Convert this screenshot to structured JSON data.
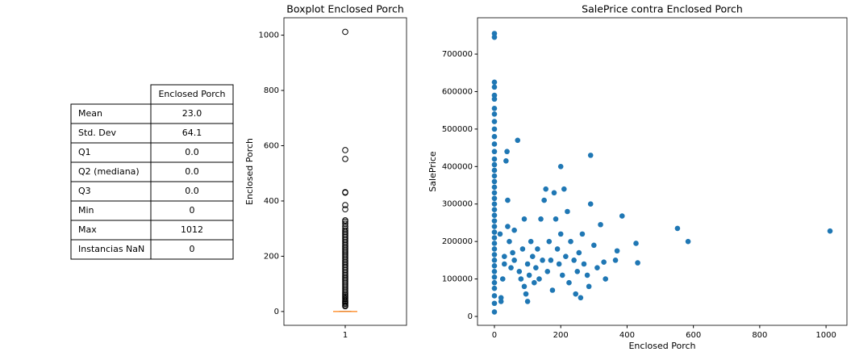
{
  "table": {
    "columns": [
      "Enclosed Porch"
    ],
    "rows": [
      [
        "Mean",
        "23.0"
      ],
      [
        "Std. Dev",
        "64.1"
      ],
      [
        "Q1",
        "0.0"
      ],
      [
        "Q2 (mediana)",
        "0.0"
      ],
      [
        "Q3",
        "0.0"
      ],
      [
        "Min",
        "0"
      ],
      [
        "Max",
        "1012"
      ],
      [
        "Instancias NaN",
        "0"
      ]
    ]
  },
  "chart_data": [
    {
      "type": "box",
      "title": "Boxplot Enclosed Porch",
      "y_label": "Enclosed Porch",
      "categories": [
        "1"
      ],
      "q1": 0,
      "median": 0,
      "q3": 0,
      "whisker_low": 0,
      "whisker_high": 0,
      "fliers": [
        19,
        23,
        28,
        32,
        36,
        40,
        45,
        50,
        55,
        60,
        66,
        72,
        78,
        84,
        90,
        96,
        102,
        108,
        114,
        120,
        126,
        132,
        138,
        144,
        150,
        156,
        162,
        168,
        174,
        180,
        186,
        192,
        198,
        204,
        210,
        216,
        222,
        228,
        234,
        240,
        246,
        252,
        258,
        264,
        270,
        276,
        282,
        288,
        294,
        300,
        308,
        318,
        325,
        330,
        370,
        385,
        430,
        432,
        552,
        584,
        1012
      ],
      "box_color": "#000000",
      "median_color": "#ff7f0e",
      "ylim": [
        -50,
        1063
      ],
      "yticks": [
        0,
        200,
        400,
        600,
        800,
        1000
      ]
    },
    {
      "type": "scatter",
      "title": "SalePrice contra Enclosed Porch",
      "x_label": "Enclosed Porch",
      "y_label": "SalePrice",
      "color": "#1f77b4",
      "x": [
        0,
        0,
        0,
        0,
        0,
        0,
        0,
        0,
        0,
        0,
        0,
        0,
        0,
        0,
        0,
        0,
        0,
        0,
        0,
        0,
        0,
        0,
        0,
        0,
        0,
        0,
        0,
        0,
        0,
        0,
        0,
        0,
        0,
        0,
        0,
        0,
        0,
        0,
        0,
        0,
        17,
        20,
        20,
        25,
        30,
        30,
        35,
        38,
        40,
        40,
        45,
        50,
        55,
        60,
        60,
        70,
        75,
        80,
        85,
        90,
        90,
        95,
        100,
        100,
        105,
        110,
        115,
        120,
        125,
        130,
        135,
        140,
        145,
        150,
        155,
        160,
        165,
        170,
        175,
        180,
        185,
        190,
        195,
        200,
        200,
        205,
        210,
        215,
        220,
        225,
        230,
        240,
        245,
        250,
        255,
        260,
        265,
        270,
        280,
        285,
        290,
        290,
        300,
        310,
        320,
        330,
        335,
        365,
        370,
        385,
        427,
        432,
        552,
        584,
        1012
      ],
      "y": [
        12000,
        35000,
        55000,
        75000,
        90000,
        105000,
        120000,
        135000,
        150000,
        165000,
        180000,
        195000,
        210000,
        225000,
        240000,
        255000,
        270000,
        285000,
        300000,
        315000,
        330000,
        345000,
        360000,
        375000,
        390000,
        405000,
        420000,
        440000,
        460000,
        480000,
        500000,
        520000,
        540000,
        555000,
        580000,
        590000,
        612000,
        625000,
        745000,
        755000,
        220000,
        50000,
        40000,
        100000,
        140000,
        160000,
        415000,
        440000,
        310000,
        240000,
        200000,
        130000,
        170000,
        150000,
        230000,
        470000,
        120000,
        100000,
        180000,
        260000,
        80000,
        60000,
        140000,
        40000,
        110000,
        200000,
        160000,
        90000,
        130000,
        180000,
        100000,
        260000,
        150000,
        310000,
        340000,
        120000,
        200000,
        150000,
        70000,
        330000,
        260000,
        180000,
        140000,
        400000,
        220000,
        110000,
        340000,
        160000,
        280000,
        90000,
        200000,
        150000,
        60000,
        120000,
        170000,
        50000,
        220000,
        140000,
        110000,
        80000,
        430000,
        300000,
        190000,
        130000,
        245000,
        145000,
        100000,
        150000,
        175000,
        268000,
        195000,
        143000,
        235000,
        200000,
        228000
      ],
      "xlim": [
        -51,
        1063
      ],
      "xticks": [
        0,
        200,
        400,
        600,
        800,
        1000
      ],
      "ylim": [
        -23700,
        797000
      ],
      "yticks": [
        0,
        100000,
        200000,
        300000,
        400000,
        500000,
        600000,
        700000
      ]
    }
  ]
}
